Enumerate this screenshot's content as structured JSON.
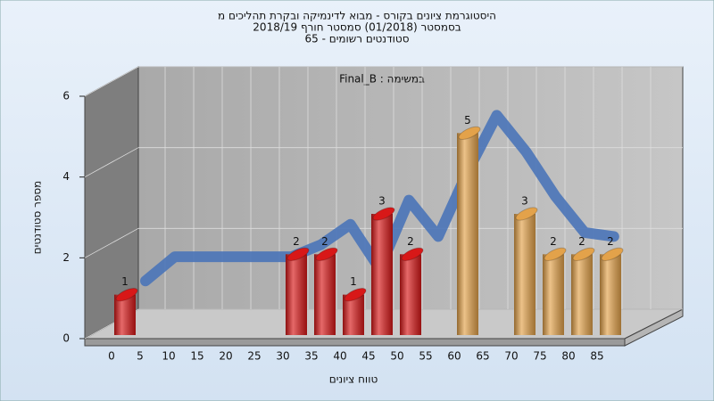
{
  "chart_data": {
    "type": "bar",
    "title": [
      "היסטוגרמת ציונים בקורס - מבוא לדינמיקה ובקרת תהליכים מ",
      "בסמסטר  (01/2018)  סמסטר חורף 2018/19",
      "סטודנטים רשומים - 65"
    ],
    "annotation": "במשימה : Final_B",
    "y_label": "מספר סטודנטים",
    "x_label": "טווח ציונים",
    "categories": [
      "0",
      "5",
      "10",
      "15",
      "20",
      "25",
      "30",
      "35",
      "40",
      "45",
      "50",
      "55",
      "60",
      "65",
      "70",
      "75",
      "80",
      "85"
    ],
    "values": [
      1,
      0,
      0,
      0,
      0,
      0,
      2,
      2,
      1,
      3,
      2,
      0,
      5,
      0,
      3,
      2,
      2,
      2
    ],
    "colors": [
      "#d81818",
      "#d81818",
      "#d81818",
      "#d81818",
      "#d81818",
      "#d81818",
      "#d81818",
      "#d81818",
      "#d81818",
      "#d81818",
      "#d81818",
      "#d81818",
      "#e3a24a",
      "#e3a24a",
      "#e3a24a",
      "#e3a24a",
      "#e3a24a",
      "#e3a24a"
    ],
    "trend": {
      "color": "#4a74b8",
      "values": [
        null,
        0.7,
        1.3,
        1.3,
        1.3,
        1.3,
        1.3,
        1.6,
        2.1,
        1.0,
        2.7,
        1.8,
        3.4,
        4.8,
        3.9,
        2.8,
        1.9,
        1.8
      ]
    },
    "ylim": [
      0,
      6
    ],
    "yticks": [
      0,
      2,
      4,
      6
    ],
    "grid": true
  }
}
